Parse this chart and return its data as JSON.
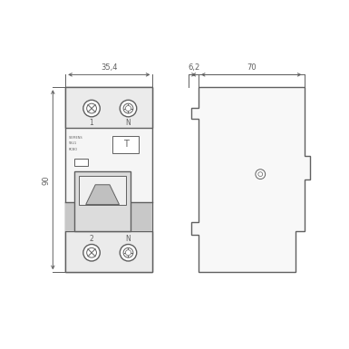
{
  "bg_color": "#ffffff",
  "line_color": "#606060",
  "dim_color": "#606060",
  "dim_35_label": "35,4",
  "dim_90_label": "90",
  "dim_62_label": "6,2",
  "dim_70_label": "70",
  "label_1": "1",
  "label_N_top": "N",
  "label_2": "2",
  "label_N_bot": "N"
}
